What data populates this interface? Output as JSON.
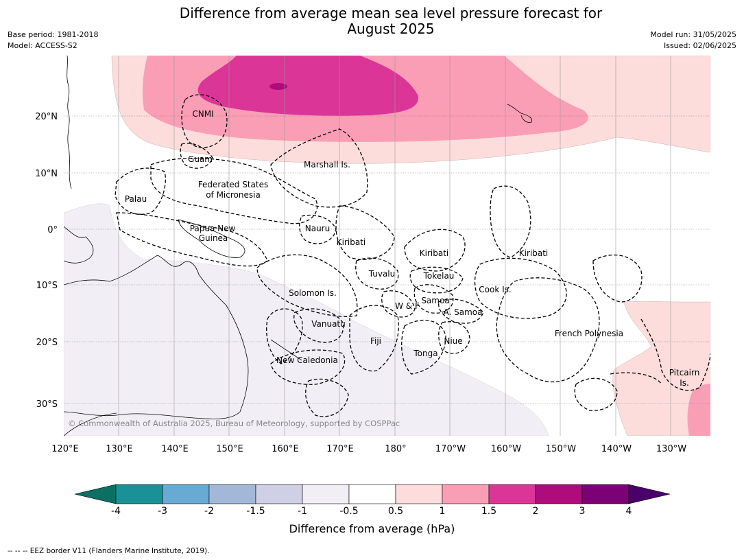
{
  "title_line1": "Difference from average mean sea level pressure forecast for",
  "title_line2": "August 2025",
  "base_period": "Base period: 1981-2018",
  "model": "Model: ACCESS-S2",
  "model_run": "Model run: 31/05/2025",
  "issued": "Issued: 02/06/2025",
  "copyright": "© Commonwealth of Australia 2025, Bureau of Meteorology, supported by COSPPac",
  "lon_labels": [
    "120°E",
    "130°E",
    "140°E",
    "150°E",
    "160°E",
    "170°E",
    "180°",
    "170°W",
    "160°W",
    "150°W",
    "140°W",
    "130°W"
  ],
  "lat_labels": [
    "20°N",
    "10°N",
    "0°",
    "10°S",
    "20°S",
    "30°S"
  ],
  "region_labels": {
    "cnmi": "CNMI",
    "guam": "Guam",
    "marshall": "Marshall Is.",
    "fsm1": "Federated States",
    "fsm2": "of Micronesia",
    "palau": "Palau",
    "png1": "Papua New",
    "png2": "Guinea",
    "nauru": "Nauru",
    "kiribati_w": "Kiribati",
    "kiribati_c": "Kiribati",
    "kiribati_e": "Kiribati",
    "tuvalu": "Tuvalu",
    "tokelau": "Tokelau",
    "cook": "Cook Is.",
    "solomon": "Solomon Is.",
    "samoa": "Samoa",
    "wf": "W & F",
    "asamoa": "A. Samoa",
    "vanuatu": "Vanuatu",
    "fiji": "Fiji",
    "niue": "Niue",
    "tonga": "Tonga",
    "frpoly": "French Polynesia",
    "newcal": "New Caledonia",
    "pitcairn1": "Pitcairn",
    "pitcairn2": "Is."
  },
  "colorbar": {
    "colors": [
      "#0b6f64",
      "#1a9196",
      "#67abd4",
      "#a3b7d9",
      "#cfcfe6",
      "#f2eef6",
      "#ffffff",
      "#fddcdc",
      "#fa9eb6",
      "#dc3598",
      "#ae0c7b",
      "#7c0177",
      "#4a006a"
    ],
    "tick_labels": [
      "-4",
      "-3",
      "-2",
      "-1.5",
      "-1",
      "-0.5",
      "0.5",
      "1",
      "1.5",
      "2",
      "3",
      "4"
    ],
    "label": "Difference from average (hPa)"
  },
  "footer": "--  --  -- EEZ border V11 (Flanders Marine Institute, 2019)."
}
